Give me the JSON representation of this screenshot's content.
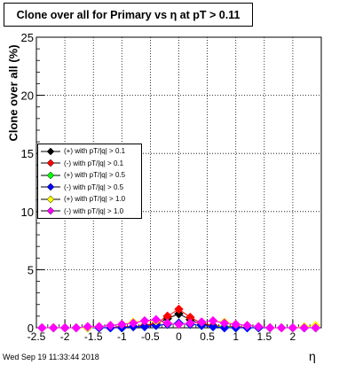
{
  "title": "Clone  over all for Primary vs   η at pT > 0.11",
  "timestamp": "Wed Sep 19 11:33:44 2018",
  "chart_data": {
    "type": "scatter",
    "xlabel": "η",
    "ylabel": "Clone  over all (%)",
    "xlim": [
      -2.5,
      2.5
    ],
    "ylim": [
      0,
      25
    ],
    "xticks": [
      "-2.5",
      "-2",
      "-1.5",
      "-1",
      "-0.5",
      "0",
      "0.5",
      "1",
      "1.5",
      "2"
    ],
    "yticks": [
      "0",
      "5",
      "10",
      "15",
      "20",
      "25"
    ],
    "grid": true,
    "legend_position": "left-middle",
    "series": [
      {
        "name": "(+) with pT/|q| > 0.1",
        "color": "#000000",
        "x": [
          -2.4,
          -2.2,
          -2.0,
          -1.8,
          -1.6,
          -1.4,
          -1.2,
          -1.0,
          -0.8,
          -0.6,
          -0.4,
          -0.2,
          0.0,
          0.2,
          0.4,
          0.6,
          0.8,
          1.0,
          1.2,
          1.4,
          1.6,
          1.8,
          2.0,
          2.2,
          2.4
        ],
        "y": [
          0,
          0,
          0,
          0,
          0,
          0,
          0,
          0.1,
          0.1,
          0.2,
          0.3,
          0.8,
          1.2,
          0.7,
          0.3,
          0.2,
          0.1,
          0.1,
          0,
          0,
          0,
          0,
          0,
          0,
          0
        ]
      },
      {
        "name": "(-) with pT/|q| > 0.1",
        "color": "#ff0000",
        "x": [
          -2.4,
          -2.2,
          -2.0,
          -1.8,
          -1.6,
          -1.4,
          -1.2,
          -1.0,
          -0.8,
          -0.6,
          -0.4,
          -0.2,
          0.0,
          0.2,
          0.4,
          0.6,
          0.8,
          1.0,
          1.2,
          1.4,
          1.6,
          1.8,
          2.0,
          2.2,
          2.4
        ],
        "y": [
          0,
          0,
          0,
          0,
          0,
          0,
          0,
          0.1,
          0.1,
          0.2,
          0.4,
          1.0,
          1.6,
          0.9,
          0.4,
          0.2,
          0.1,
          0.1,
          0,
          0,
          0,
          0,
          0,
          0,
          0
        ]
      },
      {
        "name": "(+) with pT/|q| > 0.5",
        "color": "#00ff00",
        "x": [
          -2.4,
          -2.2,
          -2.0,
          -1.8,
          -1.6,
          -1.4,
          -1.2,
          -1.0,
          -0.8,
          -0.6,
          -0.4,
          -0.2,
          0.0,
          0.2,
          0.4,
          0.6,
          0.8,
          1.0,
          1.2,
          1.4,
          1.6,
          1.8,
          2.0,
          2.2,
          2.4
        ],
        "y": [
          0,
          0,
          0,
          0,
          0,
          0,
          0,
          0,
          0.1,
          0.1,
          0.2,
          0.3,
          0.4,
          0.3,
          0.2,
          0.1,
          0.1,
          0,
          0,
          0,
          0,
          0,
          0,
          0,
          0
        ]
      },
      {
        "name": "(-) with pT/|q| > 0.5",
        "color": "#0000ff",
        "x": [
          -2.4,
          -2.2,
          -2.0,
          -1.8,
          -1.6,
          -1.4,
          -1.2,
          -1.0,
          -0.8,
          -0.6,
          -0.4,
          -0.2,
          0.0,
          0.2,
          0.4,
          0.6,
          0.8,
          1.0,
          1.2,
          1.4,
          1.6,
          1.8,
          2.0,
          2.2,
          2.4
        ],
        "y": [
          0,
          0,
          0,
          0,
          0,
          0,
          0,
          0,
          0.1,
          0.1,
          0.2,
          0.3,
          0.4,
          0.3,
          0.2,
          0.1,
          0,
          0,
          0,
          0,
          0,
          0,
          0,
          0,
          0
        ]
      },
      {
        "name": "(+) with pT/|q| > 1.0",
        "color": "#ffff00",
        "x": [
          -2.4,
          -2.2,
          -2.0,
          -1.8,
          -1.6,
          -1.4,
          -1.2,
          -1.0,
          -0.8,
          -0.6,
          -0.4,
          -0.2,
          0.0,
          0.2,
          0.4,
          0.6,
          0.8,
          1.0,
          1.2,
          1.4,
          1.6,
          1.8,
          2.0,
          2.2,
          2.4
        ],
        "y": [
          0,
          0,
          0,
          0,
          0,
          0.1,
          0.2,
          0.3,
          0.5,
          0.6,
          0.6,
          0.4,
          0.3,
          0.4,
          0.5,
          0.6,
          0.5,
          0.3,
          0.2,
          0.1,
          0,
          0,
          0,
          0.1,
          0.2
        ]
      },
      {
        "name": "(-) with pT/|q| > 1.0",
        "color": "#ff00ff",
        "x": [
          -2.4,
          -2.2,
          -2.0,
          -1.8,
          -1.6,
          -1.4,
          -1.2,
          -1.0,
          -0.8,
          -0.6,
          -0.4,
          -0.2,
          0.0,
          0.2,
          0.4,
          0.6,
          0.8,
          1.0,
          1.2,
          1.4,
          1.6,
          1.8,
          2.0,
          2.2,
          2.4
        ],
        "y": [
          0,
          0,
          0,
          0,
          0.1,
          0.1,
          0.2,
          0.3,
          0.4,
          0.6,
          0.7,
          0.4,
          0.3,
          0.4,
          0.5,
          0.6,
          0.4,
          0.3,
          0.2,
          0.1,
          0,
          0,
          0,
          0,
          0
        ]
      }
    ]
  }
}
